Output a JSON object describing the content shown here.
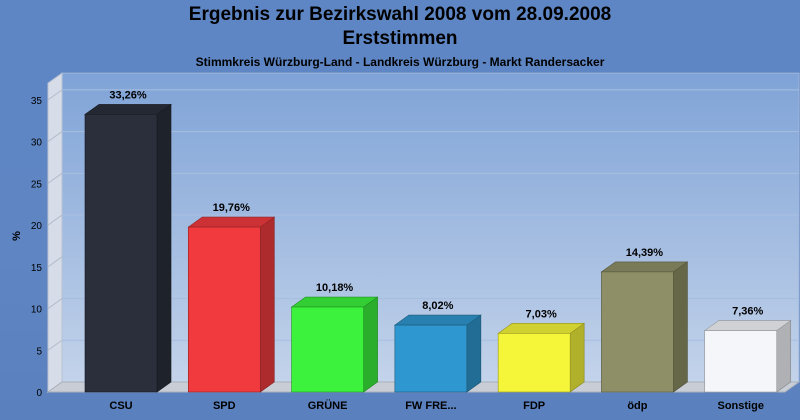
{
  "chart_data": {
    "type": "bar",
    "title": "Ergebnis zur Bezirkswahl 2008 vom 28.09.2008",
    "title_line2": "Erststimmen",
    "subtitle": "Stimmkreis Würzburg-Land - Landkreis Würzburg - Markt Randersacker",
    "ylabel": "%",
    "xlabel": "",
    "ylim": [
      0,
      37
    ],
    "yticks": [
      "0",
      "5",
      "10",
      "15",
      "20",
      "25",
      "30",
      "35"
    ],
    "grid": true,
    "categories": [
      "CSU",
      "SPD",
      "GRÜNE",
      "FW FRE...",
      "FDP",
      "ödp",
      "Sonstige"
    ],
    "values": [
      33.26,
      19.76,
      10.18,
      8.02,
      7.03,
      14.39,
      7.36
    ],
    "value_labels": [
      "33,26%",
      "19,76%",
      "10,18%",
      "8,02%",
      "7,03%",
      "14,39%",
      "7,36%"
    ],
    "colors": [
      "#2a2f3b",
      "#f03a3e",
      "#3cf23d",
      "#2f97cf",
      "#f5f53a",
      "#8e8f66",
      "#f4f6fa"
    ],
    "legend": "none"
  }
}
